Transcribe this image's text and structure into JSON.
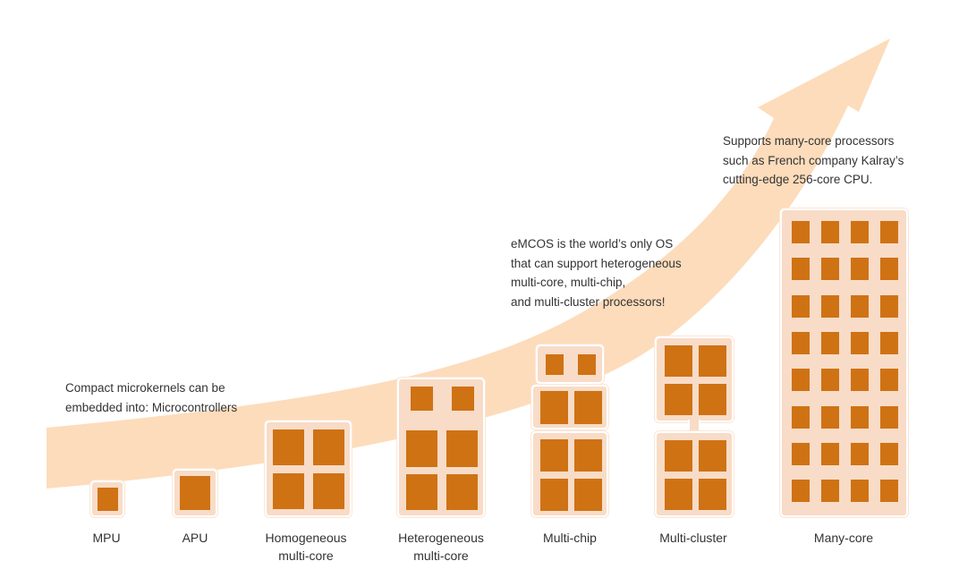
{
  "colors": {
    "arrow": "#fddcbb",
    "chip_background": "#f8dcc7",
    "core": "#cf7214",
    "text": "#333333"
  },
  "processor_types": [
    {
      "id": "mpu",
      "label_lines": [
        "MPU"
      ]
    },
    {
      "id": "apu",
      "label_lines": [
        "APU"
      ]
    },
    {
      "id": "homogeneous",
      "label_lines": [
        "Homogeneous",
        "multi-core"
      ]
    },
    {
      "id": "heterogeneous",
      "label_lines": [
        "Heterogeneous",
        "multi-core"
      ]
    },
    {
      "id": "multi-chip",
      "label_lines": [
        "Multi-chip"
      ]
    },
    {
      "id": "multi-cluster",
      "label_lines": [
        "Multi-cluster"
      ]
    },
    {
      "id": "many-core",
      "label_lines": [
        "Many-core"
      ]
    }
  ],
  "notes": {
    "microkernel": [
      "Compact microkernels can be",
      "embedded into: Microcontrollers"
    ],
    "heterogeneous_support": [
      "eMCOS is the world’s only OS",
      "that can support heterogeneous",
      "multi-core, multi-chip,",
      "and multi-cluster processors!"
    ],
    "many_core_support": [
      "Supports many-core processors",
      "such as French company Kalray’s",
      "cutting-edge 256-core CPU."
    ]
  }
}
